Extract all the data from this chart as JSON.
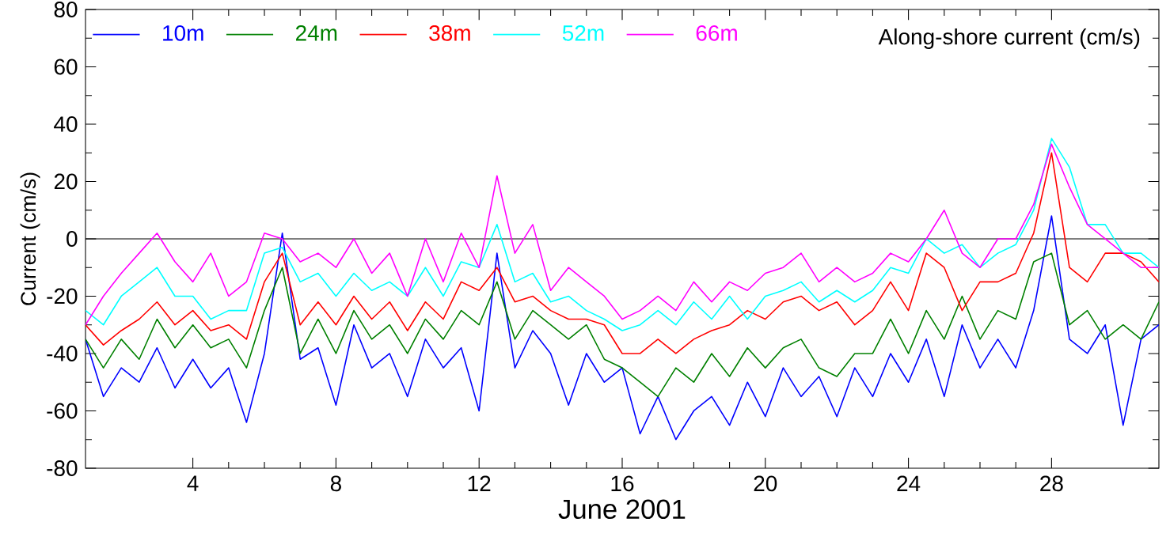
{
  "chart_data": {
    "type": "line",
    "xlabel": "June 2001",
    "ylabel": "Current (cm/s)",
    "annotations": [
      "Along-shore current (cm/s)"
    ],
    "x": [
      1,
      1.5,
      2,
      2.5,
      3,
      3.5,
      4,
      4.5,
      5,
      5.5,
      6,
      6.5,
      7,
      7.5,
      8,
      8.5,
      9,
      9.5,
      10,
      10.5,
      11,
      11.5,
      12,
      12.5,
      13,
      13.5,
      14,
      14.5,
      15,
      15.5,
      16,
      16.5,
      17,
      17.5,
      18,
      18.5,
      19,
      19.5,
      20,
      20.5,
      21,
      21.5,
      22,
      22.5,
      23,
      23.5,
      24,
      24.5,
      25,
      25.5,
      26,
      26.5,
      27,
      27.5,
      28,
      28.5,
      29,
      29.5,
      30,
      30.5,
      31
    ],
    "series": [
      {
        "name": "10m",
        "color": "#0000ff",
        "values": [
          -35,
          -55,
          -45,
          -50,
          -38,
          -52,
          -42,
          -52,
          -45,
          -64,
          -40,
          2,
          -42,
          -38,
          -58,
          -30,
          -45,
          -40,
          -55,
          -35,
          -45,
          -38,
          -60,
          -5,
          -45,
          -32,
          -40,
          -58,
          -40,
          -50,
          -45,
          -68,
          -55,
          -70,
          -60,
          -55,
          -65,
          -50,
          -62,
          -45,
          -55,
          -48,
          -62,
          -45,
          -55,
          -40,
          -50,
          -35,
          -55,
          -30,
          -45,
          -35,
          -45,
          -25,
          8,
          -35,
          -40,
          -30,
          -65,
          -35,
          -30
        ]
      },
      {
        "name": "24m",
        "color": "#008000",
        "values": [
          -35,
          -45,
          -35,
          -42,
          -28,
          -38,
          -30,
          -38,
          -35,
          -45,
          -25,
          -10,
          -40,
          -28,
          -40,
          -25,
          -35,
          -30,
          -40,
          -28,
          -35,
          -25,
          -30,
          -15,
          -35,
          -25,
          -30,
          -35,
          -30,
          -42,
          -45,
          -50,
          -55,
          -45,
          -50,
          -40,
          -48,
          -38,
          -45,
          -38,
          -35,
          -45,
          -48,
          -40,
          -40,
          -28,
          -40,
          -25,
          -35,
          -20,
          -35,
          -25,
          -28,
          -8,
          -5,
          -30,
          -25,
          -35,
          -30,
          -35,
          -22
        ]
      },
      {
        "name": "38m",
        "color": "#ff0000",
        "values": [
          -30,
          -37,
          -32,
          -28,
          -22,
          -30,
          -25,
          -32,
          -30,
          -35,
          -15,
          -5,
          -30,
          -22,
          -30,
          -20,
          -28,
          -22,
          -32,
          -22,
          -28,
          -15,
          -18,
          -10,
          -22,
          -20,
          -25,
          -28,
          -28,
          -30,
          -40,
          -40,
          -35,
          -40,
          -35,
          -32,
          -30,
          -25,
          -28,
          -22,
          -20,
          -25,
          -22,
          -30,
          -25,
          -15,
          -25,
          -5,
          -10,
          -25,
          -15,
          -15,
          -12,
          2,
          30,
          -10,
          -15,
          -5,
          -5,
          -8,
          -15
        ]
      },
      {
        "name": "52m",
        "color": "#00ffff",
        "values": [
          -25,
          -30,
          -20,
          -15,
          -10,
          -20,
          -20,
          -28,
          -25,
          -25,
          -5,
          -3,
          -15,
          -12,
          -20,
          -12,
          -18,
          -15,
          -20,
          -10,
          -20,
          -8,
          -10,
          5,
          -15,
          -12,
          -22,
          -20,
          -25,
          -28,
          -32,
          -30,
          -25,
          -30,
          -22,
          -28,
          -20,
          -28,
          -20,
          -18,
          -15,
          -22,
          -18,
          -22,
          -18,
          -10,
          -12,
          0,
          -5,
          -2,
          -10,
          -5,
          -2,
          10,
          35,
          25,
          5,
          5,
          -5,
          -5,
          -10
        ]
      },
      {
        "name": "66m",
        "color": "#ff00ff",
        "values": [
          -30,
          -20,
          -12,
          -5,
          2,
          -8,
          -15,
          -5,
          -20,
          -15,
          2,
          0,
          -8,
          -5,
          -10,
          0,
          -12,
          -5,
          -20,
          0,
          -15,
          2,
          -10,
          22,
          -5,
          5,
          -18,
          -10,
          -15,
          -20,
          -28,
          -25,
          -20,
          -25,
          -15,
          -22,
          -15,
          -18,
          -12,
          -10,
          -5,
          -15,
          -10,
          -15,
          -12,
          -5,
          -8,
          0,
          10,
          -5,
          -10,
          0,
          0,
          12,
          33,
          18,
          5,
          0,
          -5,
          -10,
          -10
        ]
      }
    ],
    "xlim": [
      1,
      31
    ],
    "ylim": [
      -80,
      80
    ],
    "xticks": [
      4,
      8,
      12,
      16,
      20,
      24,
      28
    ],
    "yticks": [
      -80,
      -60,
      -40,
      -20,
      0,
      20,
      40,
      60,
      80
    ],
    "ref_lines": [
      {
        "axis": "y",
        "value": 0,
        "color": "#000000"
      }
    ],
    "legend": "top left",
    "grid": false
  }
}
